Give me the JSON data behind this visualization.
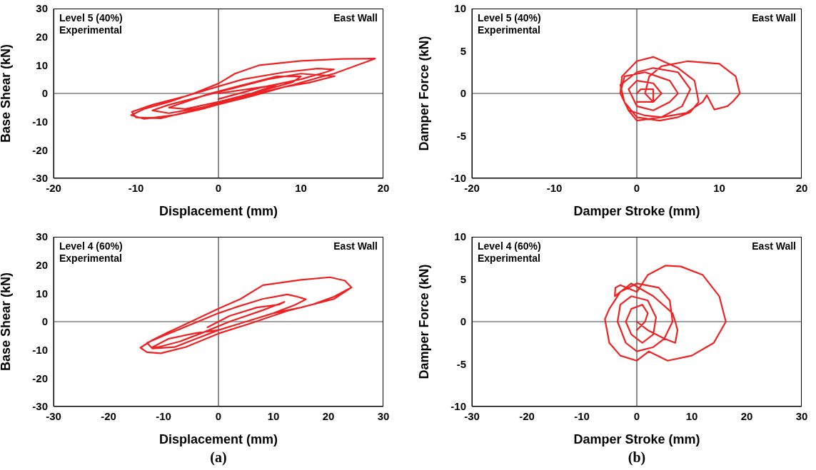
{
  "chart_data": [
    {
      "type": "line",
      "xlabel": "Displacement (mm)",
      "ylabel": "Base Shear (kN)",
      "xlim": [
        -20,
        20
      ],
      "xticks": [
        -20,
        -10,
        0,
        10,
        20
      ],
      "ylim": [
        -30,
        30
      ],
      "yticks": [
        -30,
        -20,
        -10,
        0,
        10,
        20,
        30
      ],
      "marker": "none",
      "line_style": "solid",
      "annotations": [
        "Level 5 (40%)",
        "Experimental",
        "East Wall"
      ],
      "series": [
        {
          "color": "#ee2222",
          "x": [
            0,
            5,
            10,
            13,
            14,
            12,
            8,
            3,
            0,
            -4,
            -8,
            -10.5,
            -10,
            -7,
            -3,
            0,
            4,
            9,
            12,
            14,
            19,
            15,
            10,
            5,
            2,
            0,
            -3,
            -6,
            -9,
            -10.6,
            -9,
            -5,
            -2,
            0,
            4,
            8,
            11,
            14.1,
            10,
            6,
            2,
            -2,
            -6,
            -8,
            -6,
            -2,
            2,
            6,
            9,
            10,
            7,
            3,
            -1,
            -4,
            -6,
            -4,
            0,
            4,
            7,
            0
          ],
          "values": [
            -2,
            2,
            5,
            7.5,
            8.5,
            8.8,
            7.5,
            5,
            2.5,
            -1,
            -4,
            -6.5,
            -8.5,
            -8.8,
            -6,
            -3.5,
            -0.5,
            3,
            5.5,
            7,
            12.3,
            12.2,
            11.5,
            10,
            7,
            3.5,
            0,
            -3,
            -5.5,
            -7.7,
            -9,
            -7.5,
            -5.5,
            -3.9,
            -1,
            2.3,
            3.8,
            6.1,
            7,
            5,
            2,
            -1,
            -4,
            -6,
            -7,
            -5,
            -2,
            1.5,
            4,
            6,
            6,
            3,
            0,
            -3,
            -5,
            -5.5,
            -3,
            0,
            3,
            0
          ]
        }
      ]
    },
    {
      "type": "line",
      "xlabel": "Damper Stroke (mm)",
      "ylabel": "Damper Force (kN)",
      "xlim": [
        -20,
        20
      ],
      "xticks": [
        -20,
        -10,
        0,
        10,
        20
      ],
      "ylim": [
        -10,
        10
      ],
      "yticks": [
        -10,
        -5,
        0,
        5,
        10
      ],
      "marker": "none",
      "line_style": "solid",
      "annotations": [
        "Level 5 (40%)",
        "Experimental",
        "East Wall"
      ],
      "series": [
        {
          "color": "#ee2222",
          "x": [
            0,
            2,
            3,
            2,
            0,
            -1,
            0,
            2,
            4,
            5,
            4,
            1,
            -1.5,
            -2,
            -1,
            1,
            3,
            5.5,
            6.5,
            5,
            2,
            0,
            -2,
            -1.5,
            0,
            2.75,
            5,
            6.5,
            7.5,
            7,
            5,
            2,
            0,
            -1.8,
            -2,
            -1,
            0,
            3,
            6,
            8,
            8.5,
            9.4,
            11,
            11.7,
            12.5,
            12,
            10,
            6.2,
            3,
            1.5,
            1,
            2,
            2,
            0.5,
            0
          ],
          "values": [
            -1,
            -1,
            0,
            1.2,
            1.5,
            0.5,
            -1.5,
            -2,
            -1,
            0,
            1.5,
            2.5,
            2,
            0,
            -2,
            -2.6,
            -2.8,
            -1.5,
            0.5,
            2.5,
            3,
            2.5,
            1,
            -1,
            -2.8,
            -3.2,
            -2.8,
            -2.2,
            -1,
            1.5,
            3,
            4.3,
            3.8,
            2,
            0,
            -2,
            -3.2,
            -2.8,
            -2.3,
            -1,
            -0.2,
            -1.9,
            -1.5,
            -0.9,
            0,
            2,
            3.5,
            3.8,
            3.2,
            2,
            0,
            -1,
            0.5,
            0.5,
            0
          ]
        }
      ]
    },
    {
      "type": "line",
      "xlabel": "Displacement (mm)",
      "ylabel": "Base Shear (kN)",
      "xlim": [
        -30,
        30
      ],
      "xticks": [
        -30,
        -20,
        -10,
        0,
        10,
        20,
        30
      ],
      "ylim": [
        -30,
        30
      ],
      "yticks": [
        -30,
        -20,
        -10,
        0,
        10,
        20,
        30
      ],
      "marker": "none",
      "line_style": "solid",
      "annotations": [
        "Level 4 (60%)",
        "Experimental",
        "East Wall",
        "(a)"
      ],
      "series": [
        {
          "color": "#ee2222",
          "x": [
            -2,
            2,
            7,
            11,
            12,
            8,
            2,
            -3,
            -7,
            -11,
            -12,
            -9,
            -4,
            0,
            5,
            10,
            14,
            15.9,
            14,
            12.5,
            8,
            3,
            0,
            -5,
            -10,
            -13,
            -12,
            -8,
            -4,
            0,
            5,
            10,
            15,
            21,
            24.2,
            23,
            20.3,
            15,
            8.1,
            4,
            0,
            -5,
            -9.2,
            -12,
            -14.2,
            -13,
            -10.5,
            -6,
            0,
            6,
            12.5,
            17,
            21,
            24.2
          ],
          "values": [
            -2,
            2,
            5,
            6,
            7,
            4,
            0,
            -4,
            -7,
            -9,
            -9,
            -6,
            -4,
            -3,
            0,
            3,
            6,
            7.9,
            9,
            9.6,
            8,
            5,
            3,
            -1,
            -5,
            -7.5,
            -9.5,
            -9,
            -6,
            -3,
            0,
            3,
            5,
            8,
            12.1,
            14.5,
            15.7,
            14.8,
            12.9,
            8,
            4.6,
            0,
            -3.8,
            -6.5,
            -9.2,
            -10.8,
            -11.2,
            -9,
            -4.2,
            -0.5,
            3.8,
            6,
            8.8,
            12.1
          ]
        }
      ]
    },
    {
      "type": "line",
      "xlabel": "Damper Stroke (mm)",
      "ylabel": "Damper Force (kN)",
      "xlim": [
        -30,
        30
      ],
      "xticks": [
        -30,
        -20,
        -10,
        0,
        10,
        20,
        30
      ],
      "ylim": [
        -10,
        10
      ],
      "yticks": [
        -10,
        -5,
        0,
        5,
        10
      ],
      "marker": "none",
      "line_style": "solid",
      "annotations": [
        "Level 4 (60%)",
        "Experimental",
        "East Wall",
        "(b)"
      ],
      "series": [
        {
          "color": "#ee2222",
          "x": [
            0,
            1.5,
            2,
            1,
            -1,
            -2,
            -1,
            1,
            3,
            3.5,
            2,
            -1,
            -3,
            -3.5,
            -2,
            0,
            3,
            5,
            6.5,
            6,
            4,
            0,
            -3,
            -5,
            -5.8,
            -5,
            -3,
            0,
            2.2,
            5.6,
            10,
            14,
            16.2,
            15,
            12,
            8,
            5.2,
            2,
            0,
            -3,
            -3.9,
            -4,
            -1,
            3,
            6.5,
            7,
            7.4,
            7,
            5,
            2,
            0
          ],
          "values": [
            -1,
            0,
            1,
            2,
            1.5,
            0,
            -1.5,
            -2.5,
            -1.5,
            0.5,
            2.5,
            3,
            2,
            0,
            -2.5,
            -3.5,
            -3,
            -2,
            0,
            2.5,
            4,
            4.5,
            3.5,
            1.5,
            0.3,
            -2.5,
            -4,
            -4.6,
            -3.5,
            -4.6,
            -4,
            -2.5,
            0,
            3,
            5.5,
            6.5,
            6.6,
            5.5,
            3.5,
            4.3,
            4,
            3,
            4.5,
            3,
            1,
            0,
            -1,
            -2.5,
            -2,
            -1,
            0
          ]
        }
      ]
    }
  ]
}
